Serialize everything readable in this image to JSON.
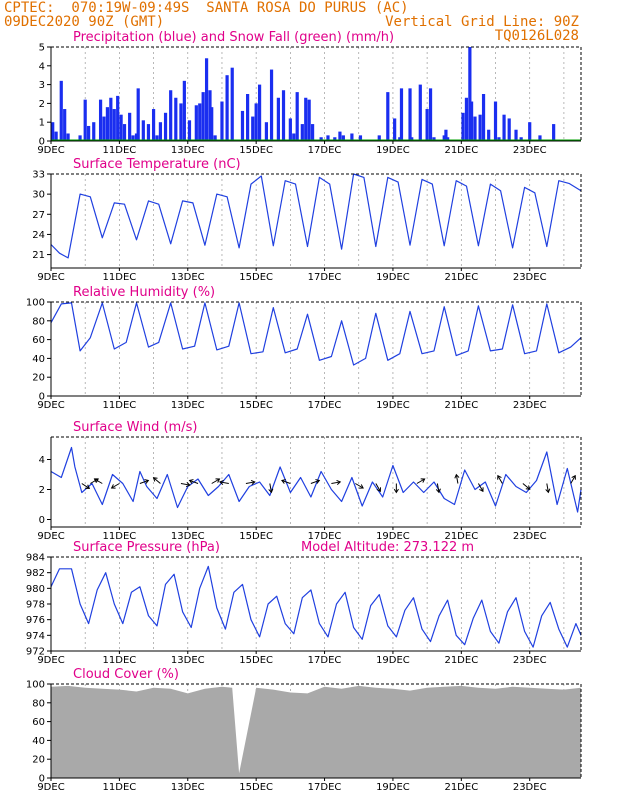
{
  "header": {
    "line1_left": "CPTEC:  070:19W-09:49S  SANTA ROSA DO PURUS (AC)",
    "line2_left": "09DEC2020 90Z (GMT)",
    "line2_right": "Vertical Grid Line: 90Z",
    "line3_right": "TQ0126L028"
  },
  "colors": {
    "header": "#e07000",
    "panel_title": "#e0008a",
    "series_line": "#2040e0",
    "precip_bar": "#1a2ef0",
    "snow": "#00a000",
    "cloud_fill": "#a9a9a9",
    "axis": "#000000",
    "grid": "#9a9a9a"
  },
  "x_axis": {
    "tick_labels": [
      "9DEC",
      "11DEC",
      "13DEC",
      "15DEC",
      "17DEC",
      "19DEC",
      "21DEC",
      "23DEC"
    ],
    "start_day": 9,
    "end_day": 24.5
  },
  "chart_data": [
    {
      "id": "precipitation",
      "type": "bar",
      "title": "Precipitation (blue) and Snow Fall (green) (mm/h)",
      "ylim": [
        0,
        5
      ],
      "y_ticks": [
        "0",
        "1",
        "2",
        "3",
        "4",
        "5"
      ],
      "series": [
        {
          "name": "Precipitation (blue)",
          "x": [
            9.05,
            9.15,
            9.3,
            9.4,
            9.5,
            9.85,
            10.0,
            10.1,
            10.25,
            10.45,
            10.55,
            10.65,
            10.75,
            10.85,
            10.95,
            11.05,
            11.15,
            11.3,
            11.4,
            11.5,
            11.55,
            11.7,
            11.85,
            12.0,
            12.1,
            12.2,
            12.35,
            12.5,
            12.65,
            12.8,
            12.9,
            13.05,
            13.25,
            13.35,
            13.45,
            13.55,
            13.65,
            13.7,
            13.8,
            14.0,
            14.15,
            14.3,
            14.6,
            14.75,
            14.9,
            15.0,
            15.1,
            15.3,
            15.45,
            15.65,
            15.8,
            16.0,
            16.1,
            16.2,
            16.35,
            16.45,
            16.55,
            16.65,
            16.9,
            17.1,
            17.3,
            17.45,
            17.55,
            17.8,
            18.05,
            18.6,
            18.85,
            19.05,
            19.2,
            19.25,
            19.5,
            19.55,
            19.8,
            20.0,
            20.1,
            20.2,
            20.5,
            20.55,
            20.6,
            21.05,
            21.15,
            21.25,
            21.3,
            21.4,
            21.55,
            21.65,
            21.8,
            22.0,
            22.1,
            22.25,
            22.4,
            22.6,
            22.75,
            23.0,
            23.3,
            23.7
          ],
          "values": [
            1.0,
            0.5,
            3.2,
            1.7,
            0.4,
            0.3,
            2.2,
            0.8,
            1.0,
            2.2,
            1.3,
            1.8,
            2.3,
            1.7,
            2.4,
            1.4,
            0.9,
            1.5,
            0.3,
            0.4,
            2.8,
            1.1,
            0.9,
            1.7,
            0.3,
            1.0,
            1.5,
            2.7,
            2.3,
            2.0,
            3.2,
            1.1,
            1.9,
            2.0,
            2.6,
            4.4,
            2.7,
            1.8,
            0.3,
            2.1,
            3.5,
            3.9,
            1.6,
            2.5,
            1.3,
            2.0,
            3.0,
            1.0,
            3.8,
            2.3,
            2.7,
            1.2,
            0.4,
            2.6,
            0.9,
            2.3,
            2.2,
            0.9,
            0.2,
            0.3,
            0.2,
            0.5,
            0.3,
            0.4,
            0.3,
            0.3,
            2.6,
            1.2,
            0.2,
            2.8,
            2.8,
            0.2,
            3.0,
            1.7,
            2.8,
            0.2,
            0.3,
            0.6,
            0.2,
            1.5,
            2.3,
            5.0,
            2.1,
            1.3,
            1.4,
            2.5,
            0.6,
            2.1,
            0.2,
            1.4,
            1.2,
            0.6,
            0.2,
            1.0,
            0.3,
            0.9
          ]
        },
        {
          "name": "Snow Fall (green)",
          "x": [],
          "values": []
        }
      ]
    },
    {
      "id": "temperature",
      "type": "line",
      "title": "Surface Temperature (nC)",
      "ylim": [
        19,
        33
      ],
      "y_ticks": [
        "21",
        "24",
        "27",
        "30",
        "33"
      ],
      "series": [
        {
          "x": [
            9.0,
            9.25,
            9.5,
            9.85,
            10.15,
            10.5,
            10.85,
            11.15,
            11.5,
            11.85,
            12.15,
            12.5,
            12.85,
            13.15,
            13.5,
            13.85,
            14.15,
            14.5,
            14.85,
            15.15,
            15.5,
            15.85,
            16.15,
            16.5,
            16.85,
            17.15,
            17.5,
            17.85,
            18.15,
            18.5,
            18.85,
            19.15,
            19.5,
            19.85,
            20.15,
            20.5,
            20.85,
            21.15,
            21.5,
            21.85,
            22.15,
            22.5,
            22.85,
            23.15,
            23.5,
            23.85,
            24.15,
            24.5
          ],
          "values": [
            22.5,
            21.2,
            20.5,
            30.0,
            29.6,
            23.5,
            28.7,
            28.5,
            23.2,
            29.0,
            28.5,
            22.6,
            29.0,
            28.7,
            22.4,
            30.0,
            29.6,
            22.0,
            31.5,
            32.7,
            22.3,
            32.0,
            31.5,
            22.2,
            32.5,
            31.5,
            21.8,
            33.0,
            32.5,
            22.2,
            32.5,
            31.8,
            22.4,
            32.2,
            31.5,
            22.3,
            32.0,
            31.2,
            22.3,
            31.5,
            30.5,
            22.0,
            31.0,
            30.2,
            22.2,
            32.0,
            31.6,
            30.5
          ]
        }
      ]
    },
    {
      "id": "humidity",
      "type": "line",
      "title": "Relative Humidity (%)",
      "ylim": [
        0,
        100
      ],
      "y_ticks": [
        "0",
        "20",
        "40",
        "60",
        "80",
        "100"
      ],
      "series": [
        {
          "x": [
            9.0,
            9.3,
            9.6,
            9.85,
            10.15,
            10.5,
            10.85,
            11.2,
            11.5,
            11.85,
            12.15,
            12.5,
            12.85,
            13.2,
            13.5,
            13.85,
            14.2,
            14.5,
            14.85,
            15.2,
            15.5,
            15.85,
            16.2,
            16.5,
            16.85,
            17.2,
            17.5,
            17.85,
            18.2,
            18.5,
            18.85,
            19.2,
            19.5,
            19.85,
            20.2,
            20.5,
            20.85,
            21.2,
            21.5,
            21.85,
            22.2,
            22.5,
            22.85,
            23.2,
            23.5,
            23.85,
            24.2,
            24.5
          ],
          "values": [
            78,
            98,
            99,
            48,
            62,
            99,
            50,
            57,
            99,
            52,
            57,
            99,
            50,
            53,
            99,
            49,
            53,
            99,
            45,
            47,
            94,
            46,
            50,
            87,
            38,
            42,
            80,
            33,
            40,
            88,
            38,
            45,
            90,
            45,
            48,
            95,
            43,
            48,
            96,
            48,
            50,
            97,
            45,
            48,
            98,
            46,
            52,
            62
          ]
        }
      ]
    },
    {
      "id": "wind",
      "type": "line",
      "title": "Surface Wind (m/s)",
      "ylim": [
        -0.5,
        5.5
      ],
      "y_ticks": [
        "0",
        "2",
        "4"
      ],
      "series": [
        {
          "x": [
            9.0,
            9.3,
            9.6,
            9.7,
            9.9,
            10.2,
            10.5,
            10.8,
            11.1,
            11.4,
            11.6,
            11.8,
            12.1,
            12.4,
            12.7,
            13.0,
            13.3,
            13.6,
            13.9,
            14.2,
            14.5,
            14.8,
            15.1,
            15.4,
            15.7,
            16.0,
            16.3,
            16.6,
            16.9,
            17.2,
            17.5,
            17.8,
            18.1,
            18.4,
            18.7,
            19.0,
            19.3,
            19.6,
            19.9,
            20.2,
            20.5,
            20.8,
            21.1,
            21.4,
            21.7,
            22.0,
            22.3,
            22.6,
            22.9,
            23.2,
            23.5,
            23.8,
            24.1,
            24.4,
            24.5
          ],
          "values": [
            3.2,
            2.8,
            4.8,
            3.5,
            1.8,
            2.4,
            1.0,
            3.0,
            2.4,
            1.2,
            3.2,
            2.2,
            1.4,
            3.0,
            0.8,
            2.2,
            2.7,
            1.6,
            2.2,
            3.0,
            1.2,
            2.2,
            2.5,
            1.6,
            3.5,
            1.8,
            2.8,
            1.5,
            3.2,
            2.0,
            1.2,
            2.8,
            0.9,
            2.5,
            1.5,
            3.6,
            1.8,
            2.5,
            1.8,
            2.5,
            1.4,
            1.0,
            3.3,
            2.0,
            2.5,
            0.9,
            3.0,
            2.2,
            1.8,
            2.6,
            4.5,
            1.0,
            3.4,
            0.5,
            2.0
          ]
        }
      ]
    },
    {
      "id": "pressure",
      "type": "line",
      "title": "Surface Pressure (hPa)",
      "annotation": "Model Altitude: 273.122 m",
      "ylim": [
        972,
        984
      ],
      "y_ticks": [
        "972",
        "974",
        "976",
        "978",
        "980",
        "982",
        "984"
      ],
      "series": [
        {
          "x": [
            9.0,
            9.25,
            9.6,
            9.85,
            10.1,
            10.35,
            10.6,
            10.85,
            11.1,
            11.35,
            11.6,
            11.85,
            12.1,
            12.35,
            12.6,
            12.85,
            13.1,
            13.35,
            13.6,
            13.85,
            14.1,
            14.35,
            14.6,
            14.85,
            15.1,
            15.35,
            15.6,
            15.85,
            16.1,
            16.35,
            16.6,
            16.85,
            17.1,
            17.35,
            17.6,
            17.85,
            18.1,
            18.35,
            18.6,
            18.85,
            19.1,
            19.35,
            19.6,
            19.85,
            20.1,
            20.35,
            20.6,
            20.85,
            21.1,
            21.35,
            21.6,
            21.85,
            22.1,
            22.35,
            22.6,
            22.85,
            23.1,
            23.35,
            23.6,
            23.85,
            24.1,
            24.35,
            24.5
          ],
          "values": [
            980.2,
            982.5,
            982.5,
            978.0,
            975.5,
            979.8,
            982.0,
            978.0,
            975.5,
            979.5,
            980.2,
            976.5,
            975.2,
            980.5,
            981.8,
            977.0,
            975.0,
            980.0,
            982.8,
            977.5,
            974.8,
            979.5,
            980.5,
            976.0,
            973.8,
            978.0,
            979.0,
            975.5,
            974.2,
            978.8,
            979.8,
            975.5,
            973.8,
            978.0,
            979.5,
            975.0,
            973.5,
            977.8,
            979.2,
            975.2,
            973.8,
            977.2,
            978.8,
            974.8,
            973.2,
            976.5,
            978.5,
            974.0,
            972.8,
            976.2,
            978.5,
            974.5,
            973.0,
            977.0,
            978.8,
            974.5,
            972.5,
            976.5,
            978.2,
            974.8,
            972.5,
            975.5,
            974.0
          ]
        }
      ]
    },
    {
      "id": "cloud",
      "type": "area",
      "title": "Cloud Cover (%)",
      "ylim": [
        0,
        100
      ],
      "y_ticks": [
        "0",
        "20",
        "40",
        "60",
        "80",
        "100"
      ],
      "series": [
        {
          "x": [
            9.0,
            9.5,
            10.0,
            10.5,
            11.0,
            11.5,
            12.0,
            12.5,
            13.0,
            13.5,
            14.0,
            14.3,
            14.5,
            15.0,
            15.5,
            16.0,
            16.5,
            17.0,
            17.5,
            18.0,
            18.5,
            19.0,
            19.5,
            20.0,
            20.5,
            21.0,
            21.5,
            22.0,
            22.5,
            23.0,
            23.5,
            24.0,
            24.5
          ],
          "values": [
            97,
            98,
            96,
            95,
            94,
            92,
            96,
            95,
            90,
            95,
            97,
            96,
            5,
            96,
            94,
            91,
            90,
            97,
            95,
            98,
            96,
            95,
            93,
            96,
            97,
            98,
            96,
            95,
            97,
            96,
            95,
            94,
            96
          ]
        }
      ]
    }
  ]
}
